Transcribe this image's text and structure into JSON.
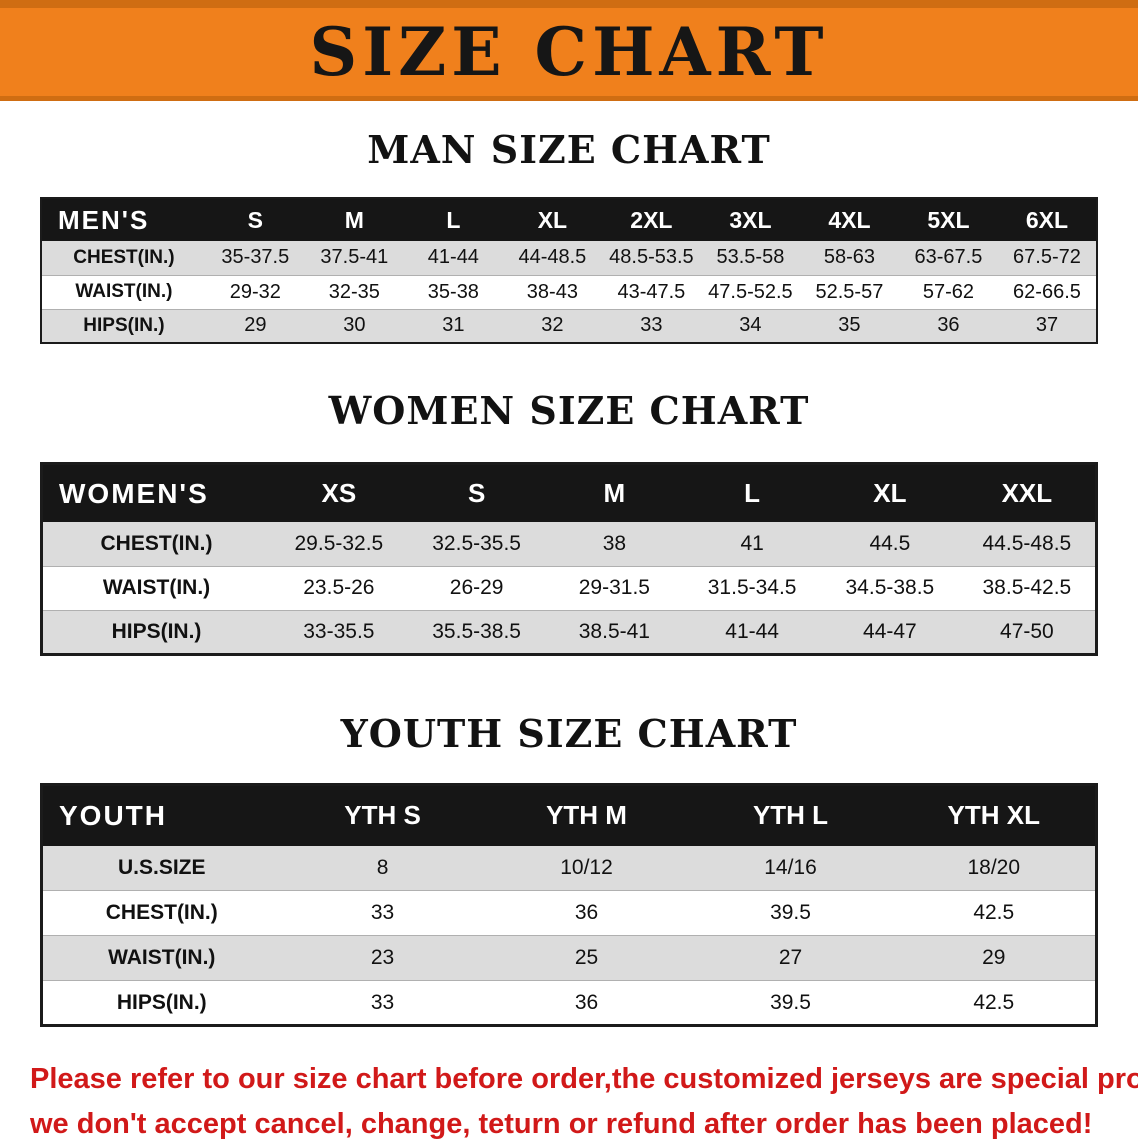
{
  "banner": {
    "title": "SIZE CHART"
  },
  "colors": {
    "banner_bg": "#f0801c",
    "banner_edge": "#cf6d12",
    "header_bg": "#161616",
    "header_text": "#ffffff",
    "row_stripe": "#dcdcdc",
    "note_red": "#d11919",
    "text_dark": "#111111"
  },
  "sections": [
    {
      "id": "men",
      "heading": "MAN SIZE CHART",
      "table": {
        "header": [
          "MEN'S",
          "S",
          "M",
          "L",
          "XL",
          "2XL",
          "3XL",
          "4XL",
          "5XL",
          "6XL"
        ],
        "rows": [
          [
            "CHEST(IN.)",
            "35-37.5",
            "37.5-41",
            "41-44",
            "44-48.5",
            "48.5-53.5",
            "53.5-58",
            "58-63",
            "63-67.5",
            "67.5-72"
          ],
          [
            "WAIST(IN.)",
            "29-32",
            "32-35",
            "35-38",
            "38-43",
            "43-47.5",
            "47.5-52.5",
            "52.5-57",
            "57-62",
            "62-66.5"
          ],
          [
            "HIPS(IN.)",
            "29",
            "30",
            "31",
            "32",
            "33",
            "34",
            "35",
            "36",
            "37"
          ]
        ]
      }
    },
    {
      "id": "women",
      "heading": "WOMEN SIZE CHART",
      "table": {
        "header": [
          "WOMEN'S",
          "XS",
          "S",
          "M",
          "L",
          "XL",
          "XXL"
        ],
        "rows": [
          [
            "CHEST(IN.)",
            "29.5-32.5",
            "32.5-35.5",
            "38",
            "41",
            "44.5",
            "44.5-48.5"
          ],
          [
            "WAIST(IN.)",
            "23.5-26",
            "26-29",
            "29-31.5",
            "31.5-34.5",
            "34.5-38.5",
            "38.5-42.5"
          ],
          [
            "HIPS(IN.)",
            "33-35.5",
            "35.5-38.5",
            "38.5-41",
            "41-44",
            "44-47",
            "47-50"
          ]
        ]
      }
    },
    {
      "id": "youth",
      "heading": "YOUTH SIZE CHART",
      "table": {
        "header": [
          "YOUTH",
          "YTH S",
          "YTH M",
          "YTH L",
          "YTH XL"
        ],
        "rows": [
          [
            "U.S.SIZE",
            "8",
            "10/12",
            "14/16",
            "18/20"
          ],
          [
            "CHEST(IN.)",
            "33",
            "36",
            "39.5",
            "42.5"
          ],
          [
            "WAIST(IN.)",
            "23",
            "25",
            "27",
            "29"
          ],
          [
            "HIPS(IN.)",
            "33",
            "36",
            "39.5",
            "42.5"
          ]
        ]
      }
    }
  ],
  "note": {
    "line1": "Please refer to our size chart before order,the customized jerseys are special products,",
    "line2": "we don't accept cancel, change, teturn or refund after order has been placed!"
  }
}
